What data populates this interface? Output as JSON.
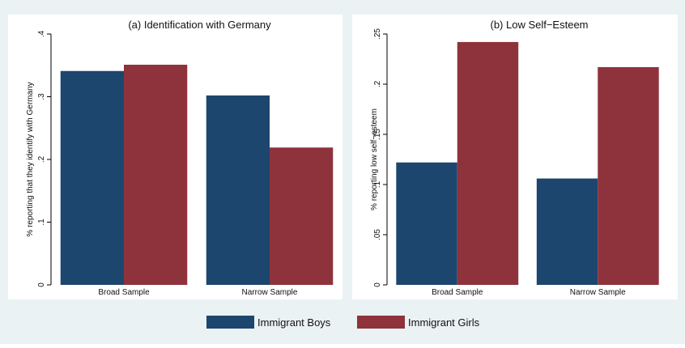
{
  "chart_data": [
    {
      "type": "bar",
      "title": "(a) Identification with Germany",
      "ylabel": "% reporting that they identify with Germany",
      "xlabel": "",
      "categories": [
        "Broad Sample",
        "Narrow Sample"
      ],
      "ylim": [
        0,
        0.4
      ],
      "yticks": [
        0,
        0.1,
        0.2,
        0.3,
        0.4
      ],
      "yticklabels": [
        "0",
        ".1",
        ".2",
        ".3",
        ".4"
      ],
      "grid": false,
      "series": [
        {
          "name": "Immigrant Boys",
          "values": [
            0.341,
            0.302
          ],
          "color": "#1c466e"
        },
        {
          "name": "Immigrant Girls",
          "values": [
            0.351,
            0.219
          ],
          "color": "#8e323c"
        }
      ]
    },
    {
      "type": "bar",
      "title": "(b) Low Self−Esteem",
      "ylabel": "% reporting low self−esteem",
      "xlabel": "",
      "categories": [
        "Broad Sample",
        "Narrow Sample"
      ],
      "ylim": [
        0,
        0.25
      ],
      "yticks": [
        0,
        0.05,
        0.1,
        0.15,
        0.2,
        0.25
      ],
      "yticklabels": [
        "0",
        ".05",
        ".1",
        ".15",
        ".2",
        ".25"
      ],
      "grid": false,
      "series": [
        {
          "name": "Immigrant Boys",
          "values": [
            0.122,
            0.106
          ],
          "color": "#1c466e"
        },
        {
          "name": "Immigrant Girls",
          "values": [
            0.242,
            0.217
          ],
          "color": "#8e323c"
        }
      ]
    }
  ],
  "legend": {
    "position": "bottom",
    "items": [
      {
        "label": "Immigrant Boys",
        "color": "#1c466e"
      },
      {
        "label": "Immigrant Girls",
        "color": "#8e323c"
      }
    ]
  },
  "colors": {
    "background": "#eaf2f3",
    "plot_background": "#ffffff"
  }
}
